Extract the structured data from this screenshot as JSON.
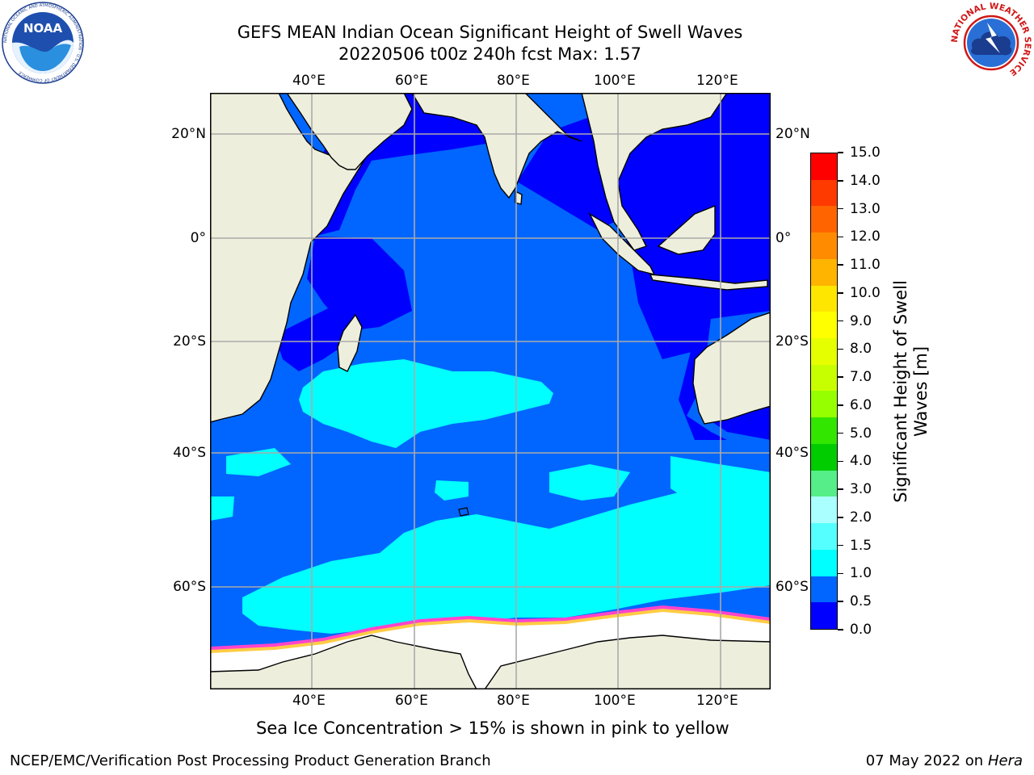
{
  "header": {
    "title_line1": "GEFS MEAN Indian Ocean Significant Height of Swell Waves",
    "title_line2": "20220506 t00z 240h fcst   Max: 1.57",
    "noaa_logo_text": "NOAA",
    "noaa_ring_text": "NATIONAL OCEANIC AND ATMOSPHERIC ADMINISTRATION · U.S. DEPARTMENT OF COMMERCE",
    "nws_ring_text": "NATIONAL WEATHER SERVICE"
  },
  "map": {
    "lon_labels": [
      "40°E",
      "60°E",
      "80°E",
      "100°E",
      "120°E"
    ],
    "lat_labels": [
      "20°N",
      "0°",
      "20°S",
      "40°S",
      "60°S"
    ],
    "colors": {
      "land": "#eeeedd",
      "swell_0_05": "#0000ff",
      "swell_05_10": "#0066ff",
      "swell_10_15": "#00ffff",
      "ice": "#ffffff",
      "ice_edge": "#ff44cc",
      "gridline": "#aaaaaa"
    }
  },
  "colorbar": {
    "label_line1": "Significant Height of Swell",
    "label_line2": "Waves [m]",
    "ticks": [
      "15.0",
      "14.0",
      "13.0",
      "12.0",
      "11.0",
      "10.0",
      "9.0",
      "8.0",
      "7.0",
      "6.0",
      "5.0",
      "4.0",
      "3.0",
      "2.0",
      "1.5",
      "1.0",
      "0.5",
      "0.0"
    ],
    "segment_colors": [
      "#ff0000",
      "#ff3a00",
      "#ff6400",
      "#ff8c00",
      "#ffb400",
      "#ffe600",
      "#ffff00",
      "#e6ff00",
      "#c8ff00",
      "#96ff00",
      "#32e600",
      "#00cc00",
      "#55ee88",
      "#aaffff",
      "#55ffff",
      "#00ffff",
      "#0066ff",
      "#0000ff"
    ]
  },
  "footer": {
    "ice_note": "Sea Ice Concentration > 15% is shown in pink to yellow",
    "branch": "NCEP/EMC/Verification Post Processing Product Generation Branch",
    "date_prefix": "07 May 2022 on",
    "machine": "Hera"
  }
}
